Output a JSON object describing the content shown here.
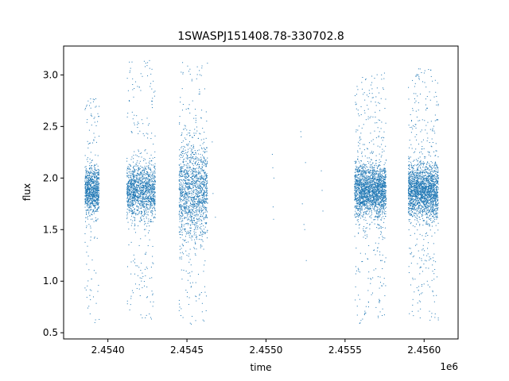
{
  "chart_data": {
    "type": "scatter",
    "title": "1SWASPJ151408.78-330702.8",
    "xlabel": "time",
    "ylabel": "flux",
    "x_offset_label": "1e6",
    "xlim": [
      2453720,
      2456215
    ],
    "ylim": [
      0.44,
      3.28
    ],
    "x_ticks": [
      2454000,
      2454500,
      2455000,
      2455500,
      2456000
    ],
    "x_tick_labels": [
      "2.4540",
      "2.4545",
      "2.4550",
      "2.4555",
      "2.4560"
    ],
    "y_ticks": [
      0.5,
      1.0,
      1.5,
      2.0,
      2.5,
      3.0
    ],
    "y_tick_labels": [
      "0.5",
      "1.0",
      "1.5",
      "2.0",
      "2.5",
      "3.0"
    ],
    "grid": false,
    "marker_color": "#1f77b4",
    "clusters": [
      {
        "t_start": 2453855,
        "t_end": 2453945,
        "flux_center": 1.88,
        "flux_spread": 0.12,
        "flux_min": 0.58,
        "flux_max": 2.77,
        "count": 950
      },
      {
        "t_start": 2454120,
        "t_end": 2454300,
        "flux_center": 1.88,
        "flux_spread": 0.13,
        "flux_min": 0.62,
        "flux_max": 3.14,
        "count": 1500
      },
      {
        "t_start": 2454450,
        "t_end": 2454630,
        "flux_center": 1.85,
        "flux_spread": 0.22,
        "flux_min": 0.58,
        "flux_max": 3.15,
        "count": 1500
      },
      {
        "t_start": 2455560,
        "t_end": 2455760,
        "flux_center": 1.88,
        "flux_spread": 0.13,
        "flux_min": 0.58,
        "flux_max": 3.02,
        "count": 2200
      },
      {
        "t_start": 2455900,
        "t_end": 2456090,
        "flux_center": 1.87,
        "flux_spread": 0.13,
        "flux_min": 0.62,
        "flux_max": 3.06,
        "count": 2200
      }
    ],
    "sparse_points": [
      {
        "x": 2454660,
        "y": 2.35
      },
      {
        "x": 2454665,
        "y": 1.85
      },
      {
        "x": 2454680,
        "y": 1.62
      },
      {
        "x": 2455040,
        "y": 2.23
      },
      {
        "x": 2455043,
        "y": 2.1
      },
      {
        "x": 2455045,
        "y": 1.72
      },
      {
        "x": 2455048,
        "y": 1.6
      },
      {
        "x": 2455050,
        "y": 2.0
      },
      {
        "x": 2455220,
        "y": 2.45
      },
      {
        "x": 2455222,
        "y": 2.4
      },
      {
        "x": 2455230,
        "y": 1.75
      },
      {
        "x": 2455240,
        "y": 1.55
      },
      {
        "x": 2455250,
        "y": 2.15
      },
      {
        "x": 2455255,
        "y": 1.2
      },
      {
        "x": 2455245,
        "y": 1.5
      },
      {
        "x": 2455350,
        "y": 2.07
      },
      {
        "x": 2455355,
        "y": 1.88
      },
      {
        "x": 2455360,
        "y": 1.68
      }
    ]
  }
}
